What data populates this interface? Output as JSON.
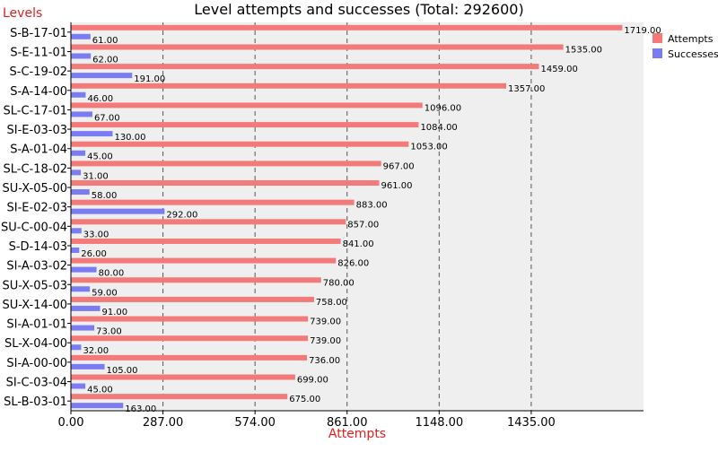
{
  "chart_data": {
    "type": "bar",
    "orientation": "horizontal",
    "title": "Level attempts and successes (Total: 292600)",
    "ylabel": "Levels",
    "xlabel": "Attempts",
    "xlim": [
      0,
      1785
    ],
    "xticks": [
      0,
      287,
      574,
      861,
      1148,
      1435
    ],
    "xtick_labels": [
      "0.00",
      "287.00",
      "574.00",
      "861.00",
      "1148.00",
      "1435.00"
    ],
    "grid": "vertical-dashed",
    "legend_position": "top-right",
    "categories": [
      "S-B-17-01",
      "S-E-11-01",
      "S-C-19-02",
      "S-A-14-00",
      "SL-C-17-01",
      "SI-E-03-03",
      "S-A-01-04",
      "SL-C-18-02",
      "SU-X-05-00",
      "SI-E-02-03",
      "SU-C-00-04",
      "S-D-14-03",
      "SI-A-03-02",
      "SU-X-05-03",
      "SU-X-14-00",
      "SI-A-01-01",
      "SL-X-04-00",
      "SI-A-00-00",
      "SI-C-03-04",
      "SL-B-03-01"
    ],
    "series": [
      {
        "name": "Attempts",
        "color": "#f47a7a",
        "values": [
          1719,
          1535,
          1459,
          1357,
          1096,
          1084,
          1053,
          967,
          961,
          883,
          857,
          841,
          826,
          780,
          758,
          739,
          739,
          736,
          699,
          675
        ],
        "labels": [
          "1719.00",
          "1535.00",
          "1459.00",
          "1357.00",
          "1096.00",
          "1084.00",
          "1053.00",
          "967.00",
          "961.00",
          "883.00",
          "857.00",
          "841.00",
          "826.00",
          "780.00",
          "758.00",
          "739.00",
          "739.00",
          "736.00",
          "699.00",
          "675.00"
        ]
      },
      {
        "name": "Successes",
        "color": "#7b7bf2",
        "values": [
          61,
          62,
          191,
          46,
          67,
          130,
          45,
          31,
          58,
          292,
          33,
          26,
          80,
          59,
          91,
          73,
          32,
          105,
          45,
          163
        ],
        "labels": [
          "61.00",
          "62.00",
          "191.00",
          "46.00",
          "67.00",
          "130.00",
          "45.00",
          "31.00",
          "58.00",
          "292.00",
          "33.00",
          "26.00",
          "80.00",
          "59.00",
          "91.00",
          "73.00",
          "32.00",
          "105.00",
          "45.00",
          "163.00"
        ]
      }
    ]
  }
}
